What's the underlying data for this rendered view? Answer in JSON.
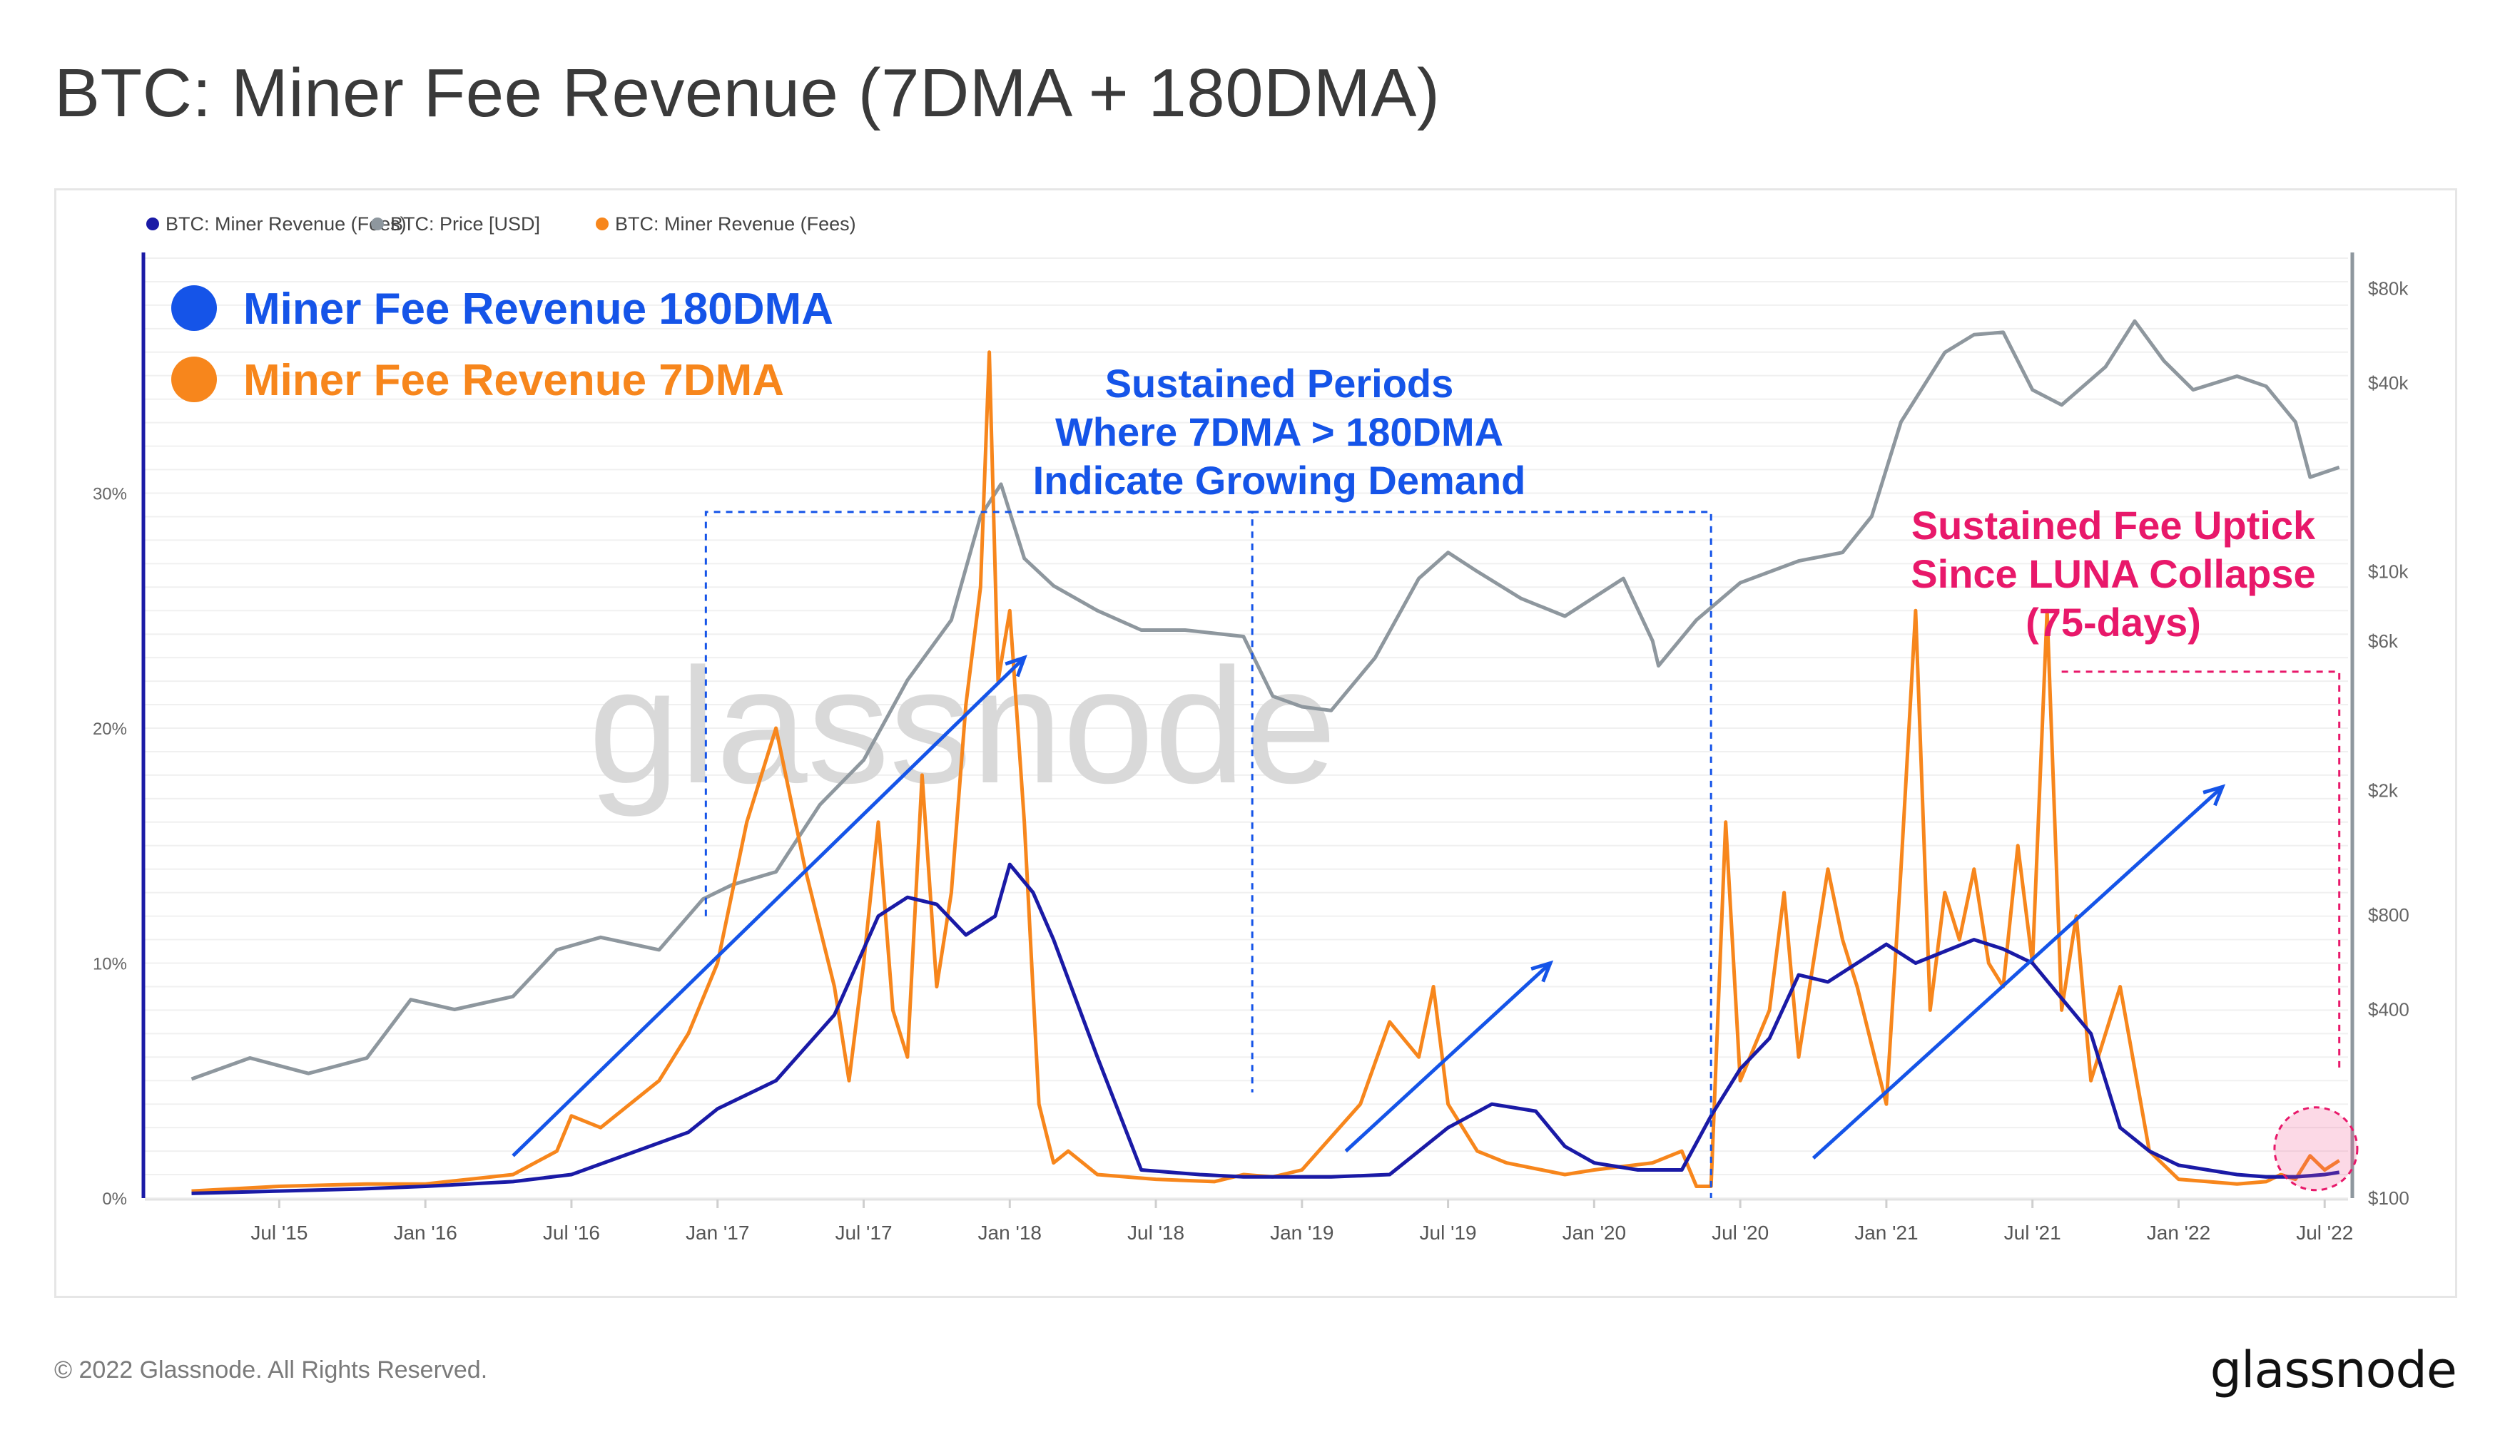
{
  "title": "BTC: Miner Fee Revenue (7DMA + 180DMA)",
  "footer": {
    "copyright": "© 2022 Glassnode. All Rights Reserved.",
    "logo": "glassnode"
  },
  "watermark": "glassnode",
  "colors": {
    "ma180": "#1a1aa6",
    "price": "#8e979e",
    "ma7": "#f7861c",
    "annot_blue": "#1554e8",
    "annot_pink": "#e8186a",
    "axis_left": "#1a1aa6",
    "axis_right": "#8e979e"
  },
  "chart_data": {
    "type": "line",
    "legend_top": [
      "BTC: Miner Revenue (Fees)",
      "BTC: Price [USD]",
      "BTC: Miner Revenue (Fees)"
    ],
    "legend_big": [
      "Miner Fee Revenue 180DMA",
      "Miner Fee Revenue 7DMA"
    ],
    "x_ticks": [
      "Jul '15",
      "Jan '16",
      "Jul '16",
      "Jan '17",
      "Jul '17",
      "Jan '18",
      "Jul '18",
      "Jan '19",
      "Jul '19",
      "Jan '20",
      "Jul '20",
      "Jan '21",
      "Jul '21",
      "Jan '22",
      "Jul '22"
    ],
    "x_range": [
      "2015-03",
      "2022-07"
    ],
    "y_left_ticks": [
      "0%",
      "10%",
      "20%",
      "30%"
    ],
    "y_left_range": [
      0,
      0.4
    ],
    "y_right_ticks": [
      "$100",
      "$400",
      "$800",
      "$2k",
      "$6k",
      "$10k",
      "$40k",
      "$80k"
    ],
    "y_right_range": [
      100,
      100000
    ],
    "y_right_scale": "log",
    "grid": true,
    "series": [
      {
        "name": "BTC: Miner Revenue (Fees)",
        "label": "Miner Fee Revenue 180DMA",
        "axis": "left",
        "x": [
          2015.2,
          2015.5,
          2015.8,
          2016.0,
          2016.3,
          2016.5,
          2016.7,
          2016.9,
          2017.0,
          2017.2,
          2017.4,
          2017.55,
          2017.65,
          2017.75,
          2017.85,
          2017.95,
          2018.0,
          2018.08,
          2018.15,
          2018.3,
          2018.45,
          2018.55,
          2018.65,
          2018.8,
          2018.95,
          2019.1,
          2019.3,
          2019.5,
          2019.65,
          2019.8,
          2019.9,
          2020.0,
          2020.15,
          2020.3,
          2020.4,
          2020.5,
          2020.6,
          2020.7,
          2020.8,
          2020.9,
          2021.0,
          2021.1,
          2021.2,
          2021.3,
          2021.4,
          2021.5,
          2021.6,
          2021.7,
          2021.8,
          2021.9,
          2022.0,
          2022.1,
          2022.2,
          2022.3,
          2022.4,
          2022.5,
          2022.55
        ],
        "y": [
          0.002,
          0.003,
          0.004,
          0.005,
          0.007,
          0.01,
          0.019,
          0.028,
          0.038,
          0.05,
          0.078,
          0.12,
          0.128,
          0.125,
          0.112,
          0.12,
          0.142,
          0.13,
          0.11,
          0.06,
          0.012,
          0.011,
          0.01,
          0.009,
          0.009,
          0.009,
          0.01,
          0.03,
          0.04,
          0.037,
          0.022,
          0.015,
          0.012,
          0.012,
          0.035,
          0.055,
          0.068,
          0.095,
          0.092,
          0.1,
          0.108,
          0.1,
          0.105,
          0.11,
          0.106,
          0.1,
          0.085,
          0.07,
          0.03,
          0.02,
          0.014,
          0.012,
          0.01,
          0.009,
          0.009,
          0.01,
          0.011
        ]
      },
      {
        "name": "BTC: Price [USD]",
        "axis": "right",
        "x": [
          2015.2,
          2015.4,
          2015.6,
          2015.8,
          2015.95,
          2016.1,
          2016.3,
          2016.45,
          2016.6,
          2016.8,
          2016.95,
          2017.05,
          2017.2,
          2017.35,
          2017.5,
          2017.65,
          2017.8,
          2017.9,
          2017.97,
          2018.05,
          2018.15,
          2018.3,
          2018.45,
          2018.6,
          2018.8,
          2018.9,
          2019.0,
          2019.1,
          2019.25,
          2019.4,
          2019.5,
          2019.6,
          2019.75,
          2019.9,
          2020.1,
          2020.2,
          2020.22,
          2020.35,
          2020.5,
          2020.7,
          2020.85,
          2020.95,
          2021.05,
          2021.2,
          2021.3,
          2021.4,
          2021.5,
          2021.6,
          2021.75,
          2021.85,
          2021.95,
          2022.05,
          2022.2,
          2022.3,
          2022.4,
          2022.45,
          2022.55
        ],
        "y": [
          240,
          280,
          250,
          280,
          430,
          400,
          440,
          620,
          680,
          620,
          900,
          1000,
          1100,
          1800,
          2500,
          4500,
          7000,
          15000,
          19000,
          11000,
          9000,
          7500,
          6500,
          6500,
          6200,
          4000,
          3700,
          3600,
          5300,
          9500,
          11500,
          10000,
          8200,
          7200,
          9500,
          6000,
          5000,
          7000,
          9200,
          10800,
          11500,
          15000,
          30000,
          50000,
          57000,
          58000,
          38000,
          34000,
          45000,
          63000,
          47000,
          38000,
          42000,
          39000,
          30000,
          20000,
          21500
        ]
      },
      {
        "name": "BTC: Miner Revenue (Fees)",
        "label": "Miner Fee Revenue 7DMA",
        "axis": "left",
        "x": [
          2015.2,
          2015.5,
          2015.8,
          2016.0,
          2016.3,
          2016.45,
          2016.5,
          2016.6,
          2016.7,
          2016.8,
          2016.9,
          2017.0,
          2017.1,
          2017.2,
          2017.3,
          2017.4,
          2017.45,
          2017.5,
          2017.55,
          2017.6,
          2017.65,
          2017.7,
          2017.75,
          2017.8,
          2017.85,
          2017.9,
          2017.93,
          2017.96,
          2018.0,
          2018.05,
          2018.1,
          2018.15,
          2018.2,
          2018.3,
          2018.5,
          2018.7,
          2018.8,
          2018.9,
          2019.0,
          2019.2,
          2019.3,
          2019.4,
          2019.45,
          2019.5,
          2019.6,
          2019.7,
          2019.9,
          2020.0,
          2020.2,
          2020.3,
          2020.35,
          2020.4,
          2020.45,
          2020.5,
          2020.6,
          2020.65,
          2020.7,
          2020.8,
          2020.85,
          2020.9,
          2021.0,
          2021.05,
          2021.1,
          2021.15,
          2021.2,
          2021.25,
          2021.3,
          2021.35,
          2021.4,
          2021.45,
          2021.5,
          2021.55,
          2021.6,
          2021.65,
          2021.7,
          2021.8,
          2021.9,
          2022.0,
          2022.1,
          2022.2,
          2022.3,
          2022.35,
          2022.4,
          2022.45,
          2022.5,
          2022.55
        ],
        "y": [
          0.003,
          0.005,
          0.006,
          0.006,
          0.01,
          0.02,
          0.035,
          0.03,
          0.04,
          0.05,
          0.07,
          0.1,
          0.16,
          0.2,
          0.14,
          0.09,
          0.05,
          0.1,
          0.16,
          0.08,
          0.06,
          0.18,
          0.09,
          0.13,
          0.21,
          0.26,
          0.36,
          0.22,
          0.25,
          0.16,
          0.04,
          0.015,
          0.02,
          0.01,
          0.008,
          0.007,
          0.01,
          0.009,
          0.012,
          0.04,
          0.075,
          0.06,
          0.09,
          0.04,
          0.02,
          0.015,
          0.01,
          0.012,
          0.015,
          0.02,
          0.005,
          0.005,
          0.16,
          0.05,
          0.08,
          0.13,
          0.06,
          0.14,
          0.11,
          0.09,
          0.04,
          0.14,
          0.25,
          0.08,
          0.13,
          0.11,
          0.14,
          0.1,
          0.09,
          0.15,
          0.1,
          0.25,
          0.08,
          0.12,
          0.05,
          0.09,
          0.02,
          0.008,
          0.007,
          0.006,
          0.007,
          0.01,
          0.008,
          0.018,
          0.012,
          0.016
        ]
      }
    ],
    "annotations": {
      "sustained_periods": [
        "Sustained Periods",
        "Where 7DMA > 180DMA",
        "Indicate Growing Demand"
      ],
      "luna": [
        "Sustained Fee Uptick",
        "Since LUNA Collapse",
        "(75-days)"
      ]
    }
  }
}
